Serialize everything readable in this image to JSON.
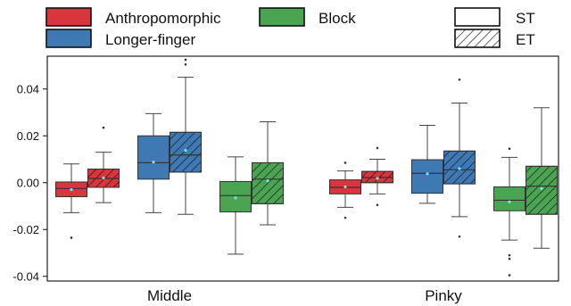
{
  "chart_data": {
    "type": "box",
    "categories": [
      "Middle",
      "Pinky"
    ],
    "ylim": [
      -0.042,
      0.054
    ],
    "yticks": [
      {
        "value": 0.04,
        "label": "0.04"
      },
      {
        "value": 0.02,
        "label": "0.02"
      },
      {
        "value": 0.0,
        "label": "0.00"
      },
      {
        "value": -0.02,
        "label": "-0.02"
      },
      {
        "value": -0.04,
        "label": "-0.04"
      }
    ],
    "legend": {
      "series": [
        {
          "name": "Anthropomorphic",
          "color": "#d8363c"
        },
        {
          "name": "Longer-finger",
          "color": "#3f79b4"
        },
        {
          "name": "Block",
          "color": "#4aa452"
        }
      ],
      "conditions": [
        {
          "name": "ST",
          "pattern": "solid"
        },
        {
          "name": "ET",
          "pattern": "hatched"
        }
      ]
    },
    "boxes": [
      {
        "category": "Middle",
        "series": "Anthropomorphic",
        "condition": "ST",
        "whisker_low": -0.0128,
        "q1": -0.006,
        "median": -0.0025,
        "q3": 0.0003,
        "whisker_high": 0.008,
        "mean": -0.003,
        "outliers": [
          -0.0235
        ]
      },
      {
        "category": "Middle",
        "series": "Anthropomorphic",
        "condition": "ET",
        "whisker_low": -0.0085,
        "q1": -0.002,
        "median": 0.0018,
        "q3": 0.0058,
        "whisker_high": 0.013,
        "mean": 0.002,
        "outliers": [
          0.0235
        ]
      },
      {
        "category": "Middle",
        "series": "Longer-finger",
        "condition": "ST",
        "whisker_low": -0.0128,
        "q1": 0.0015,
        "median": 0.0085,
        "q3": 0.02,
        "whisker_high": 0.0295,
        "mean": 0.0088,
        "outliers": []
      },
      {
        "category": "Middle",
        "series": "Longer-finger",
        "condition": "ET",
        "whisker_low": -0.0135,
        "q1": 0.0045,
        "median": 0.0118,
        "q3": 0.0215,
        "whisker_high": 0.045,
        "mean": 0.0138,
        "outliers": [
          0.0505,
          0.0525
        ]
      },
      {
        "category": "Middle",
        "series": "Block",
        "condition": "ST",
        "whisker_low": -0.0305,
        "q1": -0.0125,
        "median": -0.0055,
        "q3": 0.0005,
        "whisker_high": 0.011,
        "mean": -0.0065,
        "outliers": []
      },
      {
        "category": "Middle",
        "series": "Block",
        "condition": "ET",
        "whisker_low": -0.018,
        "q1": -0.009,
        "median": 0.0015,
        "q3": 0.0085,
        "whisker_high": 0.026,
        "mean": 0.0008,
        "outliers": []
      },
      {
        "category": "Pinky",
        "series": "Anthropomorphic",
        "condition": "ST",
        "whisker_low": -0.0105,
        "q1": -0.0048,
        "median": -0.002,
        "q3": 0.0012,
        "whisker_high": 0.005,
        "mean": -0.0018,
        "outliers": [
          -0.015,
          0.0085
        ]
      },
      {
        "category": "Pinky",
        "series": "Anthropomorphic",
        "condition": "ET",
        "whisker_low": -0.0048,
        "q1": 0.0,
        "median": 0.0022,
        "q3": 0.0048,
        "whisker_high": 0.01,
        "mean": 0.0018,
        "outliers": [
          -0.0095,
          0.0148
        ]
      },
      {
        "category": "Pinky",
        "series": "Longer-finger",
        "condition": "ST",
        "whisker_low": -0.0088,
        "q1": -0.0045,
        "median": 0.004,
        "q3": 0.0098,
        "whisker_high": 0.0245,
        "mean": 0.0038,
        "outliers": []
      },
      {
        "category": "Pinky",
        "series": "Longer-finger",
        "condition": "ET",
        "whisker_low": -0.0145,
        "q1": -0.0005,
        "median": 0.0055,
        "q3": 0.0135,
        "whisker_high": 0.034,
        "mean": 0.006,
        "outliers": [
          -0.023,
          0.044
        ]
      },
      {
        "category": "Pinky",
        "series": "Block",
        "condition": "ST",
        "whisker_low": -0.0245,
        "q1": -0.012,
        "median": -0.0075,
        "q3": -0.0018,
        "whisker_high": 0.0108,
        "mean": -0.0082,
        "outliers": [
          -0.031,
          -0.0325,
          -0.0395,
          0.0145
        ]
      },
      {
        "category": "Pinky",
        "series": "Block",
        "condition": "ET",
        "whisker_low": -0.028,
        "q1": -0.0135,
        "median": -0.0015,
        "q3": 0.007,
        "whisker_high": 0.032,
        "mean": -0.0025,
        "outliers": []
      }
    ],
    "grid": false
  }
}
